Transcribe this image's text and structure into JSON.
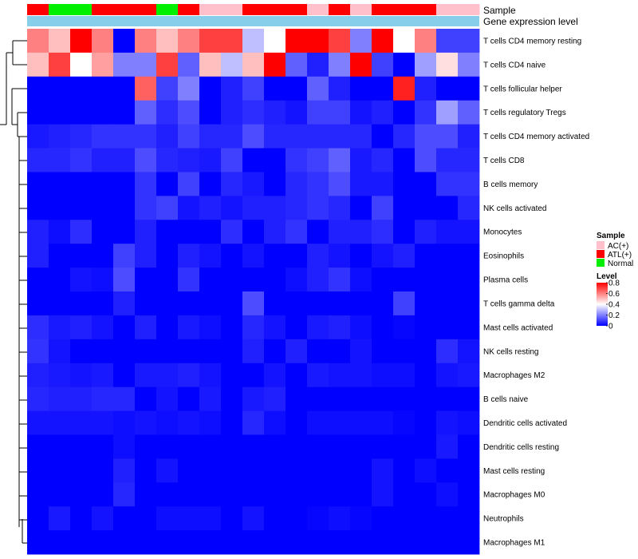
{
  "chart_data": {
    "type": "heatmap",
    "annotation_titles": [
      "Sample",
      "Gene expression level"
    ],
    "sample_groups": [
      "ATL(+)",
      "Normal",
      "Normal",
      "ATL(+)",
      "ATL(+)",
      "ATL(+)",
      "Normal",
      "ATL(+)",
      "AC(+)",
      "AC(+)",
      "ATL(+)",
      "ATL(+)",
      "ATL(+)",
      "AC(+)",
      "ATL(+)",
      "AC(+)",
      "ATL(+)",
      "ATL(+)",
      "ATL(+)",
      "AC(+)",
      "AC(+)"
    ],
    "rows": [
      "T cells CD4 memory resting",
      "T cells CD4 naive",
      "T cells follicular helper",
      "T cells regulatory  Tregs",
      "T cells CD4 memory activated",
      "T cells CD8",
      "B cells memory",
      "NK cells activated",
      "Monocytes",
      "Eosinophils",
      "Plasma cells",
      "T cells gamma delta",
      "Mast cells activated",
      "NK cells resting",
      "Macrophages M2",
      "B cells naive",
      "Dendritic cells activated",
      "Dendritic cells resting",
      "Mast cells resting",
      "Macrophages M0",
      "Neutrophils",
      "Macrophages M1"
    ],
    "values": [
      [
        0.6,
        0.5,
        0.8,
        0.6,
        0.0,
        0.6,
        0.5,
        0.6,
        0.7,
        0.7,
        0.3,
        0.4,
        0.8,
        0.8,
        0.7,
        0.2,
        0.8,
        0.4,
        0.6,
        0.1,
        0.1
      ],
      [
        0.5,
        0.7,
        0.4,
        0.55,
        0.2,
        0.2,
        0.7,
        0.15,
        0.5,
        0.3,
        0.5,
        0.8,
        0.15,
        0.05,
        0.2,
        0.8,
        0.1,
        0.0,
        0.25,
        0.45,
        0.2
      ],
      [
        0.0,
        0.0,
        0.0,
        0.0,
        0.0,
        0.65,
        0.1,
        0.2,
        0.0,
        0.05,
        0.1,
        0.0,
        0.0,
        0.15,
        0.05,
        0.0,
        0.0,
        0.75,
        0.05,
        0.0,
        0.0
      ],
      [
        0.0,
        0.0,
        0.0,
        0.0,
        0.0,
        0.15,
        0.07,
        0.12,
        0.0,
        0.05,
        0.07,
        0.05,
        0.03,
        0.1,
        0.1,
        0.03,
        0.05,
        0.0,
        0.08,
        0.25,
        0.15
      ],
      [
        0.04,
        0.05,
        0.06,
        0.08,
        0.08,
        0.08,
        0.05,
        0.1,
        0.06,
        0.06,
        0.12,
        0.06,
        0.06,
        0.06,
        0.06,
        0.06,
        0.0,
        0.06,
        0.12,
        0.12,
        0.05
      ],
      [
        0.06,
        0.06,
        0.08,
        0.05,
        0.05,
        0.12,
        0.06,
        0.05,
        0.04,
        0.1,
        0.0,
        0.0,
        0.08,
        0.1,
        0.15,
        0.04,
        0.06,
        0.0,
        0.12,
        0.06,
        0.06
      ],
      [
        0.0,
        0.0,
        0.0,
        0.0,
        0.0,
        0.08,
        0.0,
        0.1,
        0.0,
        0.06,
        0.04,
        0.0,
        0.06,
        0.08,
        0.12,
        0.04,
        0.04,
        0.0,
        0.0,
        0.08,
        0.08
      ],
      [
        0.0,
        0.0,
        0.0,
        0.0,
        0.0,
        0.08,
        0.1,
        0.03,
        0.05,
        0.03,
        0.05,
        0.05,
        0.06,
        0.08,
        0.06,
        0.0,
        0.1,
        0.0,
        0.0,
        0.0,
        0.06
      ],
      [
        0.05,
        0.02,
        0.07,
        0.0,
        0.0,
        0.05,
        0.0,
        0.0,
        0.0,
        0.07,
        0.0,
        0.05,
        0.08,
        0.0,
        0.05,
        0.05,
        0.07,
        0.0,
        0.05,
        0.03,
        0.03
      ],
      [
        0.05,
        0.0,
        0.0,
        0.0,
        0.1,
        0.05,
        0.0,
        0.05,
        0.03,
        0.0,
        0.03,
        0.0,
        0.0,
        0.05,
        0.03,
        0.0,
        0.03,
        0.05,
        0.0,
        0.0,
        0.0
      ],
      [
        0.0,
        0.0,
        0.03,
        0.02,
        0.12,
        0.0,
        0.0,
        0.08,
        0.0,
        0.0,
        0.0,
        0.0,
        0.02,
        0.05,
        0.08,
        0.02,
        0.0,
        0.0,
        0.0,
        0.0,
        0.0
      ],
      [
        0.0,
        0.0,
        0.0,
        0.0,
        0.05,
        0.0,
        0.0,
        0.0,
        0.0,
        0.0,
        0.12,
        0.0,
        0.0,
        0.0,
        0.0,
        0.0,
        0.0,
        0.1,
        0.0,
        0.0,
        0.0
      ],
      [
        0.07,
        0.04,
        0.05,
        0.03,
        0.0,
        0.05,
        0.0,
        0.04,
        0.02,
        0.0,
        0.06,
        0.03,
        0.0,
        0.04,
        0.05,
        0.02,
        0.0,
        0.01,
        0.0,
        0.0,
        0.0
      ],
      [
        0.08,
        0.03,
        0.0,
        0.0,
        0.0,
        0.0,
        0.0,
        0.0,
        0.0,
        0.0,
        0.05,
        0.0,
        0.05,
        0.0,
        0.0,
        0.03,
        0.0,
        0.0,
        0.0,
        0.07,
        0.03
      ],
      [
        0.05,
        0.04,
        0.03,
        0.04,
        0.0,
        0.04,
        0.04,
        0.05,
        0.03,
        0.0,
        0.0,
        0.03,
        0.0,
        0.04,
        0.03,
        0.03,
        0.02,
        0.02,
        0.0,
        0.03,
        0.04
      ],
      [
        0.06,
        0.05,
        0.05,
        0.06,
        0.06,
        0.0,
        0.03,
        0.0,
        0.04,
        0.0,
        0.04,
        0.05,
        0.0,
        0.0,
        0.0,
        0.0,
        0.0,
        0.0,
        0.0,
        0.0,
        0.0
      ],
      [
        0.03,
        0.03,
        0.03,
        0.03,
        0.02,
        0.03,
        0.02,
        0.03,
        0.02,
        0.0,
        0.06,
        0.02,
        0.0,
        0.02,
        0.02,
        0.02,
        0.02,
        0.01,
        0.0,
        0.03,
        0.02
      ],
      [
        0.0,
        0.0,
        0.0,
        0.0,
        0.02,
        0.0,
        0.0,
        0.0,
        0.0,
        0.0,
        0.0,
        0.0,
        0.0,
        0.0,
        0.0,
        0.0,
        0.0,
        0.0,
        0.0,
        0.04,
        0.0
      ],
      [
        0.0,
        0.0,
        0.0,
        0.0,
        0.05,
        0.0,
        0.03,
        0.0,
        0.0,
        0.0,
        0.0,
        0.0,
        0.0,
        0.0,
        0.0,
        0.0,
        0.03,
        0.0,
        0.02,
        0.0,
        0.0
      ],
      [
        0.0,
        0.0,
        0.0,
        0.0,
        0.06,
        0.0,
        0.0,
        0.0,
        0.0,
        0.0,
        0.0,
        0.0,
        0.0,
        0.0,
        0.0,
        0.0,
        0.03,
        0.0,
        0.0,
        0.02,
        0.0
      ],
      [
        0.0,
        0.04,
        0.0,
        0.03,
        0.0,
        0.0,
        0.02,
        0.02,
        0.02,
        0.0,
        0.03,
        0.0,
        0.0,
        0.01,
        0.02,
        0.01,
        0.0,
        0.0,
        0.0,
        0.0,
        0.0
      ],
      [
        0.0,
        0.0,
        0.0,
        0.0,
        0.0,
        0.0,
        0.0,
        0.0,
        0.0,
        0.0,
        0.0,
        0.0,
        0.0,
        0.0,
        0.0,
        0.0,
        0.0,
        0.0,
        0.0,
        0.0,
        0.0
      ]
    ],
    "legend": {
      "sample_title": "Sample",
      "sample_entries": [
        {
          "label": "AC(+)",
          "color": "#FFC0CB"
        },
        {
          "label": "ATL(+)",
          "color": "#FF0000"
        },
        {
          "label": "Normal",
          "color": "#00EE00"
        }
      ],
      "level_title": "Level",
      "level_ticks": [
        "0.8",
        "0.6",
        "0.4",
        "0.2",
        "0"
      ],
      "level_range": [
        0,
        0.8
      ]
    },
    "colors": {
      "low": "#0000FF",
      "mid": "#FFFFFF",
      "high": "#FF0000",
      "gene_expression_bar": "#87CEEB"
    }
  }
}
